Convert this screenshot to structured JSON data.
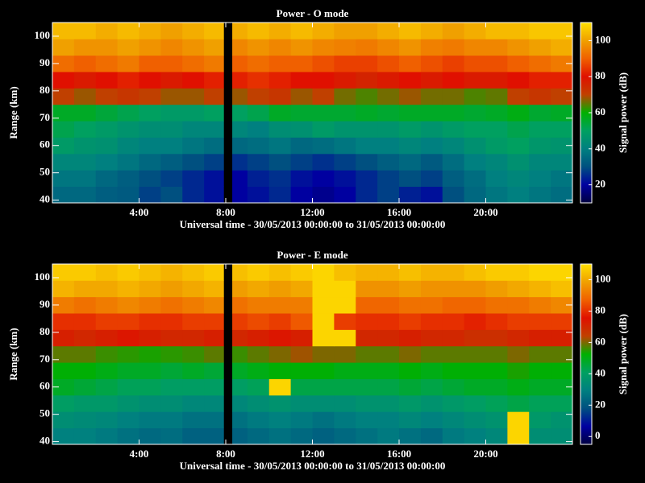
{
  "chart_data": [
    {
      "type": "heatmap",
      "title": "Power - O mode",
      "xlabel": "Universal time - 30/05/2013 00:00:00 to 31/05/2013 00:00:00",
      "ylabel": "Range (km)",
      "zlabel": "Signal power (dB)",
      "x": [
        0,
        1,
        2,
        3,
        4,
        5,
        6,
        7,
        7.9,
        8.3,
        9,
        10,
        11,
        12,
        13,
        14,
        15,
        16,
        17,
        18,
        19,
        20,
        21,
        22,
        23,
        24
      ],
      "y": [
        39,
        45,
        51,
        57,
        63,
        69,
        75,
        81,
        87,
        93,
        99,
        105
      ],
      "z": [
        [
          35,
          35,
          33,
          32,
          28,
          30,
          25,
          22,
          null,
          20,
          22,
          25,
          20,
          18,
          20,
          25,
          28,
          24,
          22,
          30,
          35,
          38,
          40,
          38,
          36
        ],
        [
          38,
          38,
          35,
          33,
          30,
          28,
          25,
          22,
          null,
          20,
          24,
          26,
          22,
          20,
          22,
          25,
          28,
          30,
          28,
          33,
          36,
          40,
          42,
          40,
          38
        ],
        [
          42,
          42,
          40,
          38,
          35,
          33,
          30,
          28,
          null,
          26,
          28,
          30,
          28,
          26,
          28,
          30,
          33,
          35,
          32,
          36,
          40,
          42,
          45,
          42,
          42
        ],
        [
          48,
          46,
          45,
          42,
          40,
          40,
          38,
          36,
          null,
          35,
          36,
          38,
          35,
          36,
          38,
          40,
          40,
          42,
          40,
          42,
          45,
          48,
          50,
          47,
          46
        ],
        [
          52,
          50,
          48,
          46,
          44,
          44,
          42,
          42,
          null,
          42,
          40,
          44,
          45,
          48,
          46,
          46,
          46,
          48,
          46,
          48,
          50,
          50,
          52,
          50,
          50
        ],
        [
          56,
          56,
          54,
          52,
          50,
          48,
          48,
          50,
          null,
          50,
          52,
          56,
          55,
          55,
          55,
          56,
          55,
          56,
          56,
          56,
          55,
          56,
          58,
          55,
          56
        ],
        [
          70,
          68,
          70,
          72,
          70,
          68,
          68,
          70,
          null,
          68,
          70,
          72,
          68,
          70,
          66,
          64,
          66,
          68,
          66,
          66,
          64,
          65,
          70,
          72,
          70
        ],
        [
          80,
          78,
          80,
          82,
          80,
          78,
          80,
          82,
          null,
          82,
          84,
          82,
          80,
          80,
          78,
          76,
          78,
          80,
          78,
          80,
          78,
          78,
          80,
          82,
          82
        ],
        [
          92,
          90,
          92,
          94,
          90,
          90,
          92,
          94,
          null,
          90,
          92,
          90,
          90,
          88,
          86,
          86,
          88,
          90,
          88,
          86,
          88,
          88,
          90,
          92,
          94
        ],
        [
          100,
          98,
          98,
          100,
          98,
          96,
          98,
          100,
          null,
          96,
          98,
          96,
          98,
          96,
          95,
          94,
          96,
          98,
          95,
          94,
          96,
          96,
          98,
          100,
          102
        ],
        [
          104,
          104,
          102,
          104,
          102,
          100,
          102,
          104,
          null,
          102,
          104,
          102,
          104,
          102,
          100,
          100,
          102,
          104,
          102,
          100,
          102,
          104,
          104,
          106,
          106
        ]
      ],
      "xlim": [
        0,
        24
      ],
      "xticks": [
        {
          "value": 4,
          "label": "4:00"
        },
        {
          "value": 8,
          "label": "8:00"
        },
        {
          "value": 12,
          "label": "12:00"
        },
        {
          "value": 16,
          "label": "16:00"
        },
        {
          "value": 20,
          "label": "20:00"
        }
      ],
      "ylim": [
        39,
        105
      ],
      "yticks": [
        40,
        50,
        60,
        70,
        80,
        90,
        100
      ],
      "zlim": [
        10,
        110
      ],
      "zticks": [
        20,
        40,
        60,
        80,
        100
      ],
      "colorscale": [
        "#000040",
        "#0000a0",
        "#005080",
        "#008080",
        "#00a060",
        "#00b000",
        "#c04000",
        "#e01000",
        "#f06000",
        "#f0a000",
        "#ffe000"
      ]
    },
    {
      "type": "heatmap",
      "title": "Power - E mode",
      "xlabel": "Universal time - 30/05/2013 00:00:00 to 31/05/2013 00:00:00",
      "ylabel": "Range (km)",
      "zlabel": "Signal power (dB)",
      "x": [
        0,
        1,
        2,
        3,
        4,
        5,
        6,
        7,
        7.9,
        8.3,
        9,
        10,
        11,
        12,
        13,
        14,
        15,
        16,
        17,
        18,
        19,
        20,
        21,
        22,
        23,
        24
      ],
      "y": [
        39,
        45,
        51,
        57,
        63,
        69,
        75,
        81,
        87,
        93,
        99,
        105
      ],
      "z": [
        [
          30,
          30,
          28,
          26,
          24,
          25,
          22,
          22,
          null,
          22,
          24,
          26,
          24,
          22,
          24,
          26,
          28,
          26,
          24,
          28,
          30,
          32,
          108,
          34,
          34
        ],
        [
          34,
          33,
          32,
          30,
          28,
          28,
          26,
          26,
          null,
          26,
          28,
          30,
          28,
          26,
          28,
          30,
          30,
          32,
          30,
          32,
          34,
          36,
          108,
          38,
          36
        ],
        [
          40,
          38,
          38,
          36,
          34,
          34,
          32,
          32,
          null,
          32,
          34,
          36,
          34,
          34,
          34,
          36,
          36,
          38,
          36,
          38,
          40,
          42,
          44,
          42,
          42
        ],
        [
          48,
          46,
          44,
          42,
          42,
          40,
          40,
          40,
          null,
          40,
          42,
          108,
          44,
          44,
          44,
          44,
          44,
          46,
          44,
          46,
          48,
          48,
          50,
          48,
          48
        ],
        [
          52,
          52,
          50,
          48,
          48,
          46,
          48,
          46,
          null,
          48,
          50,
          52,
          52,
          52,
          50,
          50,
          50,
          52,
          50,
          52,
          52,
          52,
          54,
          52,
          52
        ],
        [
          58,
          58,
          56,
          55,
          54,
          55,
          56,
          58,
          null,
          56,
          58,
          60,
          62,
          60,
          60,
          58,
          58,
          60,
          58,
          58,
          58,
          58,
          60,
          58,
          58
        ],
        [
          72,
          70,
          72,
          74,
          72,
          70,
          70,
          72,
          null,
          70,
          72,
          74,
          72,
          108,
          108,
          70,
          70,
          72,
          70,
          70,
          68,
          68,
          70,
          72,
          72
        ],
        [
          80,
          80,
          82,
          82,
          80,
          80,
          82,
          82,
          null,
          82,
          84,
          82,
          86,
          108,
          82,
          80,
          80,
          82,
          80,
          80,
          78,
          80,
          82,
          82,
          82
        ],
        [
          92,
          90,
          92,
          94,
          92,
          90,
          92,
          94,
          null,
          90,
          92,
          92,
          92,
          108,
          108,
          88,
          88,
          90,
          90,
          88,
          88,
          90,
          90,
          92,
          94
        ],
        [
          102,
          100,
          100,
          102,
          100,
          98,
          100,
          102,
          null,
          98,
          100,
          98,
          100,
          108,
          108,
          96,
          96,
          98,
          96,
          96,
          96,
          98,
          100,
          102,
          104
        ],
        [
          106,
          106,
          104,
          106,
          104,
          102,
          104,
          106,
          null,
          104,
          106,
          104,
          106,
          108,
          104,
          102,
          102,
          104,
          102,
          102,
          104,
          106,
          106,
          108,
          108
        ]
      ],
      "xlim": [
        0,
        24
      ],
      "xticks": [
        {
          "value": 4,
          "label": "4:00"
        },
        {
          "value": 8,
          "label": "8:00"
        },
        {
          "value": 12,
          "label": "12:00"
        },
        {
          "value": 16,
          "label": "16:00"
        },
        {
          "value": 20,
          "label": "20:00"
        }
      ],
      "ylim": [
        39,
        105
      ],
      "yticks": [
        40,
        50,
        60,
        70,
        80,
        90,
        100
      ],
      "zlim": [
        -5,
        110
      ],
      "zticks": [
        0,
        20,
        40,
        60,
        80,
        100
      ],
      "colorscale": [
        "#000040",
        "#0000a0",
        "#005080",
        "#008080",
        "#00a060",
        "#00b000",
        "#c04000",
        "#e01000",
        "#f06000",
        "#f0a000",
        "#ffe000"
      ]
    }
  ]
}
